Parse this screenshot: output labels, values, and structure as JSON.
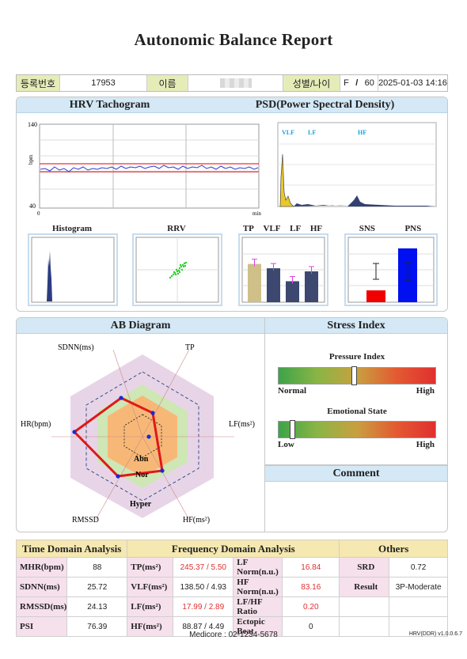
{
  "title": "Autonomic Balance Report",
  "header": {
    "id_label": "등록번호",
    "id_value": "17953",
    "name_label": "이름",
    "name_value": "",
    "gender_label": "성별/나이",
    "gender_value": "F",
    "age_sep": "/",
    "age_value": "60",
    "datetime": "2025-01-03 14:16"
  },
  "hrv": {
    "title_left": "HRV Tachogram",
    "title_right": "PSD(Power Spectral Density)",
    "y_max": "140",
    "y_min": "40",
    "y_unit": "bpm",
    "x_start": "0",
    "x_unit": "min",
    "psd_vlf": "VLF",
    "psd_lf": "LF",
    "psd_hf": "HF",
    "sub": {
      "histogram": "Histogram",
      "rrv": "RRV",
      "tp": "TP",
      "vlf": "VLF",
      "lf": "LF",
      "hf": "HF",
      "sns": "SNS",
      "pns": "PNS"
    },
    "power_bars": [
      0.62,
      0.55,
      0.34,
      0.5
    ],
    "sns_pns": [
      0.22,
      1.0
    ]
  },
  "ab": {
    "title": "AB Diagram",
    "axes": {
      "sdnn": "SDNN(ms)",
      "tp": "TP",
      "lf": "LF(ms²)",
      "hf": "HF(ms²)",
      "rmssd": "RMSSD",
      "hr": "HR(bpm)"
    },
    "zones": {
      "abn": "Abn",
      "nor": "Nor",
      "hyper": "Hyper"
    }
  },
  "stress": {
    "title": "Stress Index",
    "pressure": {
      "label": "Pressure Index",
      "low": "Normal",
      "high": "High",
      "level": 0.47
    },
    "emotion": {
      "label": "Emotional State",
      "low": "Low",
      "high": "High",
      "level": 0.07
    }
  },
  "comment": {
    "title": "Comment"
  },
  "table": {
    "time_title": "Time Domain Analysis",
    "freq_title": "Frequency Domain Analysis",
    "others_title": "Others",
    "rows": [
      {
        "k1": "MHR(bpm)",
        "v1": "88",
        "k2": "TP(ms²)",
        "v2": "245.37 /  5.50",
        "k3": "LF Norm(n.u.)",
        "v3": "16.84",
        "k4": "SRD",
        "v4": "0.72"
      },
      {
        "k1": "SDNN(ms)",
        "v1": "25.72",
        "k2": "VLF(ms²)",
        "v2": "138.50 /  4.93",
        "k3": "HF Norm(n.u.)",
        "v3": "83.16",
        "k4": "Result",
        "v4": "3P-Moderate"
      },
      {
        "k1": "RMSSD(ms)",
        "v1": "24.13",
        "k2": "LF(ms²)",
        "v2": "17.99 /  2.89",
        "k3": "LF/HF Ratio",
        "v3": "0.20",
        "k4": "",
        "v4": ""
      },
      {
        "k1": "PSI",
        "v1": "76.39",
        "k2": "HF(ms²)",
        "v2": "88.87 /  4.49",
        "k3": "Ectopic Beat",
        "v3": "0",
        "k4": "",
        "v4": ""
      }
    ]
  },
  "footer": "Medicore : 02-1234-5678",
  "version": "HRV(DDR) v1.0.0.6.7",
  "colors": {
    "panel_head": "#d4e8f6",
    "label_bg": "#e6ecb8",
    "table_head": "#f5e8b0",
    "key_bg": "#f6e0ec",
    "red": "#e03030"
  }
}
